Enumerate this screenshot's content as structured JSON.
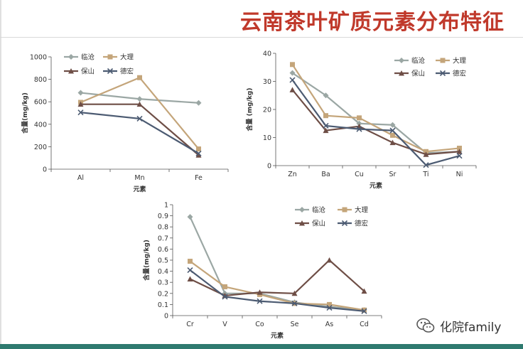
{
  "title": "云南茶叶矿质元素分布特征",
  "watermark": "化院family",
  "colors": {
    "title": "#c0392b",
    "bottom_bar": "#2e7a6f"
  },
  "series_styles": [
    {
      "name": "临沧",
      "color": "#9ba7a4",
      "marker": "diamond"
    },
    {
      "name": "大理",
      "color": "#c4a57a",
      "marker": "square"
    },
    {
      "name": "保山",
      "color": "#6e4e46",
      "marker": "triangle"
    },
    {
      "name": "德宏",
      "color": "#4c5b72",
      "marker": "x"
    }
  ],
  "chart_data": [
    {
      "type": "line",
      "categories": [
        "Al",
        "Mn",
        "Fe"
      ],
      "ylabel": "含量(mg/kg)",
      "xlabel": "元素",
      "ylim": [
        0,
        1000
      ],
      "yticks": [
        "0",
        "200",
        "400",
        "600",
        "800",
        "1000"
      ],
      "legend_position": "top-left",
      "series": [
        {
          "name": "临沧",
          "values": [
            680,
            625,
            590
          ]
        },
        {
          "name": "大理",
          "values": [
            595,
            815,
            180
          ]
        },
        {
          "name": "保山",
          "values": [
            578,
            578,
            125
          ]
        },
        {
          "name": "德宏",
          "values": [
            505,
            450,
            140
          ]
        }
      ]
    },
    {
      "type": "line",
      "categories": [
        "Zn",
        "Ba",
        "Cu",
        "Sr",
        "Ti",
        "Ni"
      ],
      "ylabel": "含量 (mg/kg)",
      "xlabel": "元素",
      "ylim": [
        0,
        40
      ],
      "yticks": [
        "0",
        "10",
        "20",
        "30",
        "40"
      ],
      "legend_position": "top-right",
      "series": [
        {
          "name": "临沧",
          "values": [
            33,
            25,
            15,
            14.5,
            4.5,
            5
          ]
        },
        {
          "name": "大理",
          "values": [
            36,
            17.8,
            17,
            10.8,
            5,
            6.2
          ]
        },
        {
          "name": "保山",
          "values": [
            27,
            12.5,
            14,
            8.2,
            4,
            5
          ]
        },
        {
          "name": "德宏",
          "values": [
            30.5,
            14.2,
            13,
            12.5,
            0.2,
            3.5
          ]
        }
      ]
    },
    {
      "type": "line",
      "categories": [
        "Cr",
        "V",
        "Co",
        "Se",
        "As",
        "Cd"
      ],
      "ylabel": "含量(mg/kg)",
      "xlabel": "元素",
      "ylim": [
        0,
        1
      ],
      "yticks": [
        "0",
        "0.1",
        "0.2",
        "0.3",
        "0.4",
        "0.5",
        "0.6",
        "0.7",
        "0.8",
        "0.9",
        "1"
      ],
      "legend_position": "top-right",
      "series": [
        {
          "name": "临沧",
          "values": [
            0.89,
            0.2,
            0.2,
            0.12,
            0.08,
            0.05
          ]
        },
        {
          "name": "大理",
          "values": [
            0.49,
            0.26,
            0.19,
            0.11,
            0.1,
            0.05
          ]
        },
        {
          "name": "保山",
          "values": [
            0.33,
            0.18,
            0.21,
            0.2,
            0.5,
            0.22
          ]
        },
        {
          "name": "德宏",
          "values": [
            0.41,
            0.17,
            0.13,
            0.11,
            0.07,
            0.04
          ]
        }
      ]
    }
  ]
}
